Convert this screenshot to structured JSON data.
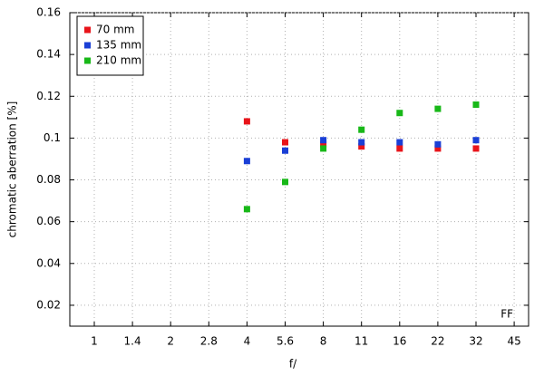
{
  "chart_data": {
    "type": "scatter",
    "xlabel": "f/",
    "ylabel": "chromatic aberration [%]",
    "annotation": "FF",
    "categories": [
      "1",
      "1.4",
      "2",
      "2.8",
      "4",
      "5.6",
      "8",
      "11",
      "16",
      "22",
      "32",
      "45"
    ],
    "series": [
      {
        "name": "70 mm",
        "color": "#e8141a",
        "values": [
          null,
          null,
          null,
          null,
          0.108,
          0.098,
          0.097,
          0.096,
          0.095,
          0.095,
          0.095,
          null
        ]
      },
      {
        "name": "135 mm",
        "color": "#1a3fd6",
        "values": [
          null,
          null,
          null,
          null,
          0.089,
          0.094,
          0.099,
          0.098,
          0.098,
          0.097,
          0.099,
          null
        ]
      },
      {
        "name": "210 mm",
        "color": "#18b818",
        "values": [
          null,
          null,
          null,
          null,
          0.066,
          0.079,
          0.095,
          0.104,
          0.112,
          0.114,
          0.116,
          null
        ]
      }
    ],
    "ylim": [
      0.01,
      0.16
    ],
    "yticks": [
      0.02,
      0.04,
      0.06,
      0.08,
      0.1,
      0.12,
      0.14,
      0.16
    ],
    "grid": true,
    "legend": "top-left"
  }
}
